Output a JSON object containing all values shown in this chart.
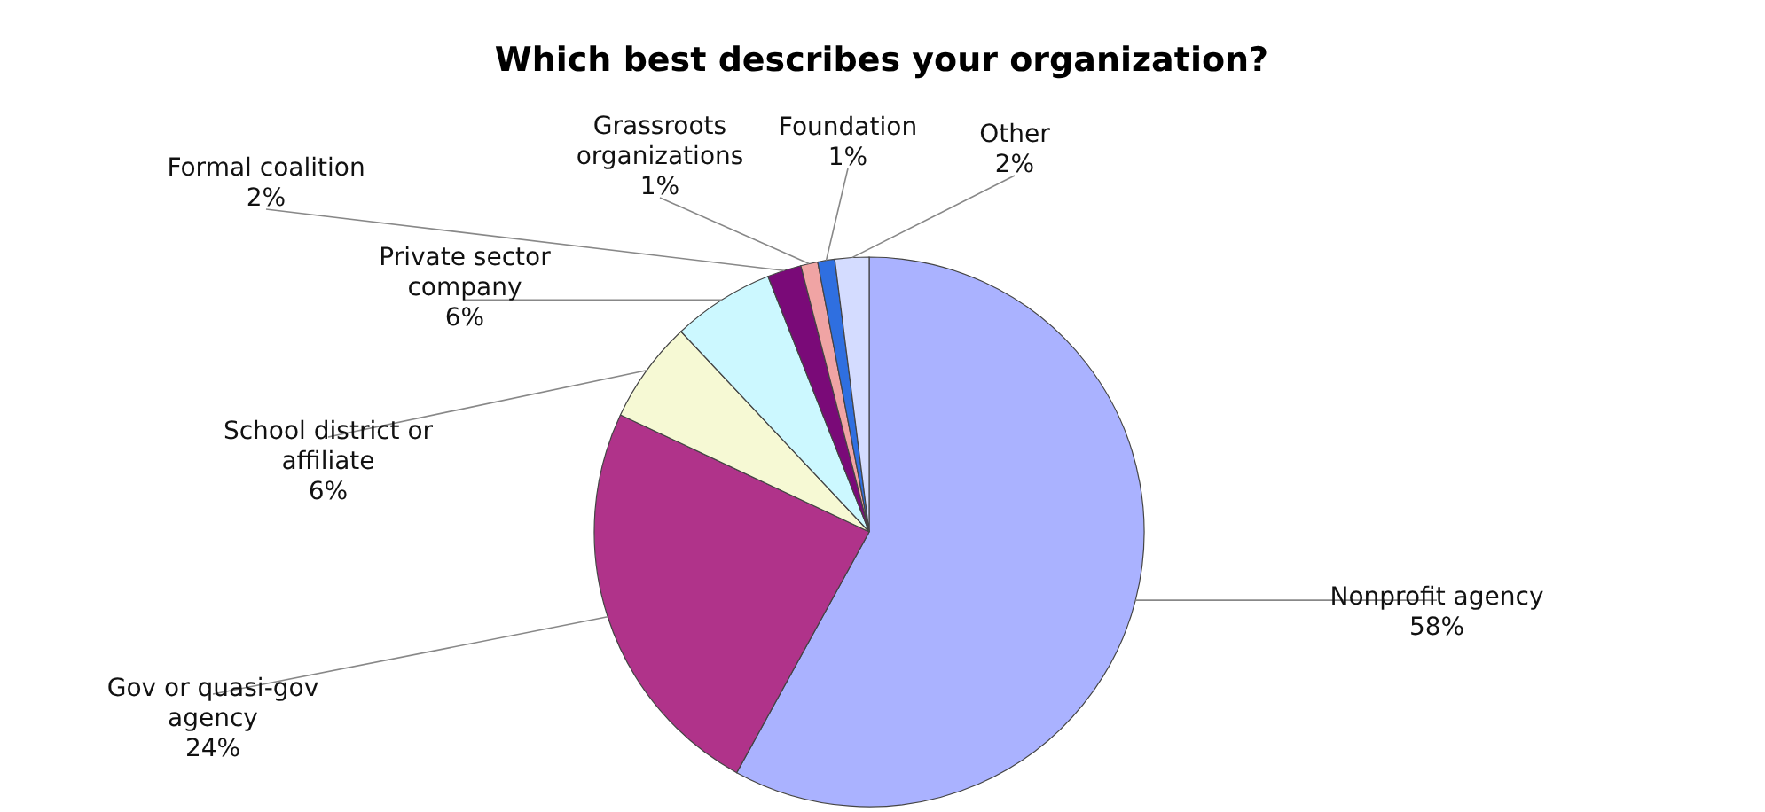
{
  "chart_data": {
    "type": "pie",
    "title": "Which best describes your organization?",
    "categories": [
      "Nonprofit agency",
      "Gov or quasi-gov agency",
      "School district or affiliate",
      "Private sector company",
      "Formal coalition",
      "Grassroots organizations",
      "Foundation",
      "Other"
    ],
    "values": [
      58,
      24,
      6,
      6,
      2,
      1,
      1,
      2
    ],
    "colors": [
      "#aab2ff",
      "#b0338a",
      "#f6f9d4",
      "#ccf8ff",
      "#7a0a78",
      "#f0a4a4",
      "#2f6fe0",
      "#d4dcff"
    ],
    "value_labels": [
      "58%",
      "24%",
      "6%",
      "6%",
      "2%",
      "1%",
      "1%",
      "2%"
    ]
  }
}
